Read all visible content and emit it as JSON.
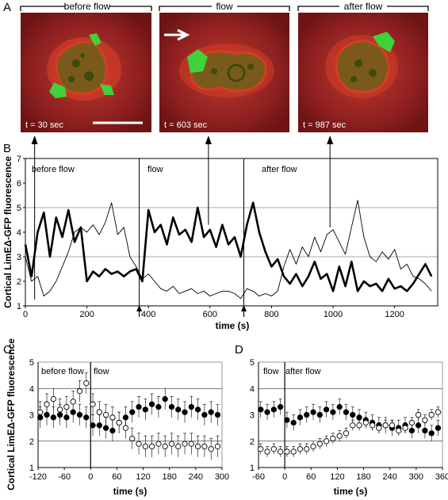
{
  "panel_letters": {
    "a": "A",
    "b": "B",
    "c": "C",
    "d": "D"
  },
  "panel_a": {
    "frames": [
      {
        "header": "before flow",
        "timestamp": "t = 30 sec"
      },
      {
        "header": "flow",
        "timestamp": "t = 603 sec"
      },
      {
        "header": "after flow",
        "timestamp": "t = 987 sec"
      }
    ]
  },
  "chart_data": [
    {
      "id": "B",
      "type": "line",
      "ylabel": "Cortical LimEΔ-GFP fluorescence",
      "xlabel": "time (s)",
      "xlim": [
        0,
        1340
      ],
      "ylim": [
        1,
        7
      ],
      "xticks": [
        "0",
        "200",
        "400",
        "600",
        "800",
        "1000",
        "1200"
      ],
      "yticks": [
        "1",
        "2",
        "3",
        "4",
        "5",
        "6",
        "7"
      ],
      "gridlines_y": [
        3,
        5
      ],
      "phase_dividers_x": [
        370,
        710
      ],
      "phase_labels": [
        "before flow",
        "flow",
        "after flow"
      ],
      "arrows_up_from_x": [
        30,
        595,
        990
      ],
      "arrows_below_axis_x": [
        370,
        710
      ],
      "series": [
        {
          "style": "thick",
          "x": [
            0,
            20,
            40,
            60,
            80,
            100,
            120,
            140,
            160,
            180,
            200,
            220,
            240,
            260,
            280,
            300,
            320,
            340,
            360,
            380,
            400,
            420,
            440,
            460,
            480,
            500,
            520,
            540,
            560,
            580,
            600,
            620,
            640,
            660,
            680,
            700,
            720,
            740,
            760,
            780,
            800,
            820,
            840,
            860,
            880,
            900,
            920,
            940,
            960,
            980,
            1000,
            1020,
            1040,
            1060,
            1080,
            1100,
            1120,
            1140,
            1160,
            1180,
            1200,
            1220,
            1240,
            1260,
            1280,
            1300,
            1320
          ],
          "y": [
            3.5,
            2.2,
            4.0,
            4.8,
            3.0,
            4.6,
            3.8,
            4.9,
            3.6,
            4.2,
            2.0,
            2.4,
            2.2,
            2.5,
            2.3,
            2.4,
            2.2,
            2.4,
            2.5,
            2.0,
            4.9,
            4.0,
            4.3,
            3.5,
            4.6,
            3.9,
            4.1,
            3.6,
            5.0,
            3.8,
            4.1,
            3.4,
            4.3,
            3.5,
            3.8,
            3.0,
            4.3,
            5.2,
            4.0,
            3.2,
            2.6,
            2.9,
            2.2,
            1.9,
            2.3,
            1.8,
            2.2,
            2.8,
            2.1,
            2.3,
            1.6,
            2.6,
            1.8,
            2.8,
            1.6,
            2.0,
            1.8,
            1.9,
            1.6,
            2.1,
            1.7,
            1.8,
            1.6,
            1.9,
            2.3,
            2.7,
            2.2
          ]
        },
        {
          "style": "thin",
          "x": [
            0,
            20,
            40,
            60,
            80,
            100,
            120,
            140,
            160,
            180,
            200,
            220,
            240,
            260,
            280,
            300,
            320,
            340,
            360,
            380,
            400,
            420,
            440,
            460,
            480,
            500,
            520,
            540,
            560,
            580,
            600,
            620,
            640,
            660,
            680,
            700,
            720,
            740,
            760,
            780,
            800,
            820,
            840,
            860,
            880,
            900,
            920,
            940,
            960,
            980,
            1000,
            1020,
            1040,
            1060,
            1080,
            1100,
            1120,
            1140,
            1160,
            1180,
            1200,
            1220,
            1240,
            1260,
            1280,
            1300,
            1320
          ],
          "y": [
            3.0,
            2.0,
            2.2,
            1.4,
            1.6,
            2.0,
            2.6,
            3.2,
            4.0,
            4.2,
            4.0,
            4.3,
            3.9,
            4.4,
            5.2,
            3.9,
            4.2,
            3.0,
            2.6,
            2.1,
            2.3,
            2.0,
            1.7,
            1.6,
            1.8,
            1.5,
            1.6,
            1.7,
            1.5,
            1.6,
            1.4,
            1.5,
            1.6,
            1.6,
            1.5,
            1.3,
            1.7,
            1.6,
            1.4,
            1.5,
            1.4,
            1.6,
            2.6,
            3.3,
            2.7,
            3.4,
            3.0,
            3.8,
            3.2,
            3.9,
            4.1,
            3.6,
            3.1,
            4.2,
            5.3,
            3.8,
            3.0,
            2.8,
            3.2,
            2.9,
            3.3,
            2.5,
            2.7,
            2.2,
            2.1,
            1.9,
            1.6
          ]
        }
      ]
    },
    {
      "id": "C",
      "type": "scatter",
      "ylabel": "Cortical LimEΔ-GFP fluorescence",
      "xlabel": "time (s)",
      "xlim": [
        -120,
        300
      ],
      "ylim": [
        1,
        5
      ],
      "xticks": [
        "-120",
        "-60",
        "0",
        "60",
        "120",
        "180",
        "240",
        "300"
      ],
      "yticks": [
        "1",
        "2",
        "3",
        "4",
        "5"
      ],
      "gridlines_y": [
        2,
        4
      ],
      "phase_labels": [
        "before flow",
        "flow"
      ],
      "series": [
        {
          "marker": "filled",
          "x": [
            -115,
            -100,
            -85,
            -70,
            -55,
            -40,
            -25,
            -10,
            5,
            20,
            35,
            50,
            65,
            80,
            95,
            110,
            125,
            140,
            155,
            170,
            185,
            200,
            215,
            230,
            245,
            260,
            275,
            290
          ],
          "y": [
            2.9,
            3.0,
            2.9,
            3.0,
            2.9,
            3.1,
            3.0,
            2.9,
            2.6,
            2.6,
            2.5,
            2.4,
            2.7,
            2.9,
            3.1,
            3.3,
            3.2,
            3.4,
            3.3,
            3.6,
            3.3,
            3.2,
            3.1,
            3.3,
            3.2,
            3.0,
            3.1,
            3.0
          ],
          "err": 0.4
        },
        {
          "marker": "open",
          "x": [
            -115,
            -100,
            -85,
            -70,
            -55,
            -40,
            -25,
            -10,
            5,
            20,
            35,
            50,
            65,
            80,
            95,
            110,
            125,
            140,
            155,
            170,
            185,
            200,
            215,
            230,
            245,
            260,
            275,
            290
          ],
          "y": [
            3.1,
            3.4,
            3.6,
            3.2,
            3.3,
            3.5,
            3.9,
            4.2,
            3.4,
            3.1,
            3.0,
            2.9,
            2.7,
            2.5,
            2.1,
            1.9,
            1.8,
            1.8,
            1.9,
            1.8,
            1.9,
            1.8,
            1.9,
            1.9,
            1.8,
            1.8,
            1.7,
            1.8
          ],
          "err": 0.4
        }
      ]
    },
    {
      "id": "D",
      "type": "scatter",
      "xlabel": "time (s)",
      "xlim": [
        -60,
        360
      ],
      "ylim": [
        1,
        5
      ],
      "xticks": [
        "-60",
        "0",
        "60",
        "120",
        "180",
        "240",
        "300",
        "360"
      ],
      "yticks": [
        "1",
        "2",
        "3",
        "4",
        "5"
      ],
      "gridlines_y": [
        2,
        4
      ],
      "phase_labels": [
        "flow",
        "after flow"
      ],
      "series": [
        {
          "marker": "filled",
          "x": [
            -55,
            -40,
            -25,
            -10,
            5,
            20,
            35,
            50,
            65,
            80,
            95,
            110,
            125,
            140,
            155,
            170,
            185,
            200,
            215,
            230,
            245,
            260,
            275,
            290,
            305,
            320,
            335,
            350
          ],
          "y": [
            3.2,
            3.1,
            3.2,
            3.3,
            2.8,
            2.7,
            2.9,
            3.0,
            3.1,
            3.0,
            3.2,
            3.1,
            3.3,
            3.1,
            3.0,
            2.9,
            2.8,
            2.7,
            2.6,
            2.6,
            2.5,
            2.5,
            2.6,
            2.4,
            2.6,
            2.4,
            2.3,
            2.5
          ],
          "err": 0.3
        },
        {
          "marker": "open",
          "x": [
            -55,
            -40,
            -25,
            -10,
            5,
            20,
            35,
            50,
            65,
            80,
            95,
            110,
            125,
            140,
            155,
            170,
            185,
            200,
            215,
            230,
            245,
            260,
            275,
            290,
            305,
            320,
            335,
            350
          ],
          "y": [
            1.7,
            1.6,
            1.7,
            1.6,
            1.6,
            1.6,
            1.7,
            1.7,
            1.8,
            1.9,
            2.0,
            2.1,
            2.2,
            2.3,
            2.6,
            2.6,
            2.7,
            2.6,
            2.5,
            2.6,
            2.6,
            2.4,
            2.5,
            2.7,
            3.0,
            2.8,
            3.0,
            3.1
          ],
          "err": 0.2
        }
      ]
    }
  ]
}
